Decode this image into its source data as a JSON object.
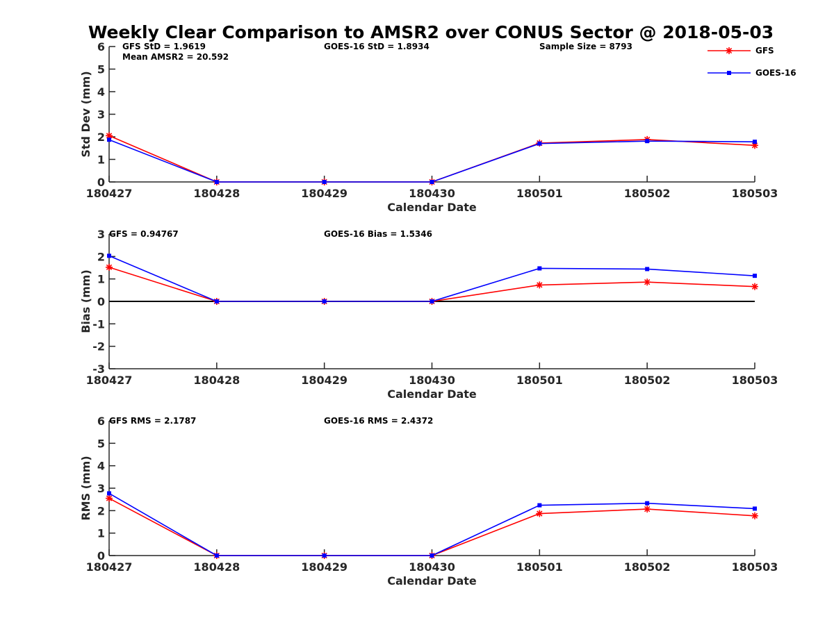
{
  "chart_data": {
    "title": "Weekly Clear Comparison to AMSR2 over CONUS Sector @ 2018-05-03",
    "categories": [
      "180427",
      "180428",
      "180429",
      "180430",
      "180501",
      "180502",
      "180503"
    ],
    "legend": [
      {
        "name": "GFS",
        "color": "#ff0000",
        "marker": "asterisk"
      },
      {
        "name": "GOES-16",
        "color": "#0000ff",
        "marker": "square"
      }
    ],
    "legend_position": "top-right",
    "panels": [
      {
        "type": "line",
        "ylabel": "Std Dev (mm)",
        "xlabel": "Calendar Date",
        "ylim": [
          0,
          6
        ],
        "yticks": [
          "0",
          "1",
          "2",
          "3",
          "4",
          "5",
          "6"
        ],
        "zero_line": false,
        "annotations": {
          "gfs": "GFS StD = 1.9619",
          "mean": "Mean AMSR2 = 20.592",
          "goes": "GOES-16 StD = 1.8934",
          "sample": "Sample Size = 8793"
        },
        "series": [
          {
            "name": "GFS",
            "values": [
              2.05,
              0,
              0,
              0,
              1.72,
              1.88,
              1.62
            ]
          },
          {
            "name": "GOES-16",
            "values": [
              1.87,
              0,
              0,
              0,
              1.7,
              1.81,
              1.78
            ]
          }
        ]
      },
      {
        "type": "line",
        "ylabel": "Bias (mm)",
        "xlabel": "Calendar Date",
        "ylim": [
          -3,
          3
        ],
        "yticks": [
          "-3",
          "-2",
          "-1",
          "0",
          "1",
          "2",
          "3"
        ],
        "zero_line": true,
        "annotations": {
          "gfs": "GFS = 0.94767",
          "goes": "GOES-16 Bias  = 1.5346"
        },
        "series": [
          {
            "name": "GFS",
            "values": [
              1.52,
              0,
              0,
              0,
              0.73,
              0.86,
              0.66
            ]
          },
          {
            "name": "GOES-16",
            "values": [
              2.03,
              0,
              0,
              0,
              1.47,
              1.44,
              1.14
            ]
          }
        ]
      },
      {
        "type": "line",
        "ylabel": "RMS (mm)",
        "xlabel": "Calendar Date",
        "ylim": [
          0,
          6
        ],
        "yticks": [
          "0",
          "1",
          "2",
          "3",
          "4",
          "5",
          "6"
        ],
        "zero_line": false,
        "annotations": {
          "gfs": "GFS RMS = 2.1787",
          "goes": "GOES-16 RMS = 2.4372"
        },
        "series": [
          {
            "name": "GFS",
            "values": [
              2.55,
              0,
              0,
              0,
              1.87,
              2.07,
              1.77
            ]
          },
          {
            "name": "GOES-16",
            "values": [
              2.77,
              0,
              0,
              0,
              2.24,
              2.33,
              2.09
            ]
          }
        ]
      }
    ]
  }
}
